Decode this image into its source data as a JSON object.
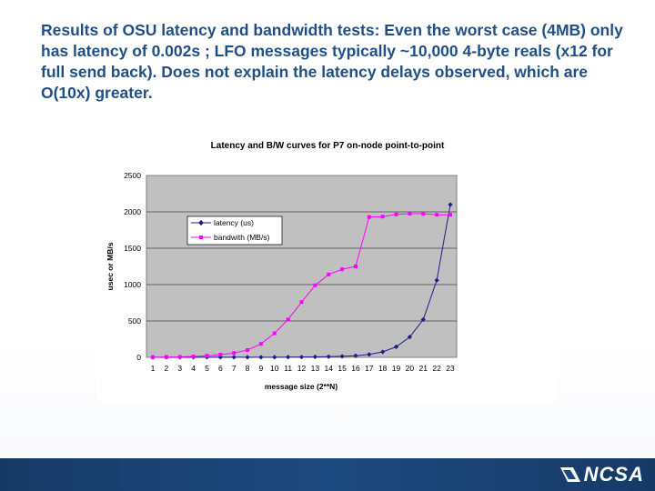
{
  "slide": {
    "title": "Results of OSU latency and bandwidth tests: Even the worst case (4MB) only has latency of 0.002s ; LFO messages typically ~10,000 4-byte reals (x12 for full send back). Does not explain the latency delays observed, which are O(10x) greater."
  },
  "logo": {
    "text": "NCSA",
    "icon": "ncsa-logo-icon"
  },
  "colors": {
    "title": "#1f4f86",
    "plot_bg": "#c0c0c0",
    "latency": "#1c1c8a",
    "bandwidth": "#ff00ff",
    "footer": "#1d4a80"
  },
  "chart_data": {
    "type": "line",
    "title": "Latency and B/W curves for P7 on-node point-to-point",
    "xlabel": "message size (2**N)",
    "ylabel": "usec or MB/s",
    "categories": [
      "1",
      "2",
      "3",
      "4",
      "5",
      "6",
      "7",
      "8",
      "9",
      "10",
      "11",
      "12",
      "13",
      "14",
      "15",
      "16",
      "17",
      "18",
      "19",
      "20",
      "21",
      "22",
      "23"
    ],
    "ylim": [
      0,
      2500
    ],
    "yticks": [
      "0",
      "500",
      "1000",
      "1500",
      "2000",
      "2500"
    ],
    "grid": "horizontal",
    "legend_position": "upper-left",
    "series": [
      {
        "name": "latency (us)",
        "marker": "diamond",
        "values": [
          1,
          1,
          1,
          1,
          1,
          1,
          1,
          1,
          2,
          2,
          3,
          4,
          6,
          9,
          14,
          22,
          40,
          75,
          145,
          280,
          520,
          1060,
          2100
        ]
      },
      {
        "name": "bandwith (MB/s)",
        "marker": "square",
        "values": [
          2,
          4,
          7,
          12,
          22,
          38,
          60,
          100,
          185,
          330,
          520,
          760,
          990,
          1140,
          1210,
          1250,
          1930,
          1935,
          1965,
          1975,
          1975,
          1960,
          1960
        ]
      }
    ]
  }
}
